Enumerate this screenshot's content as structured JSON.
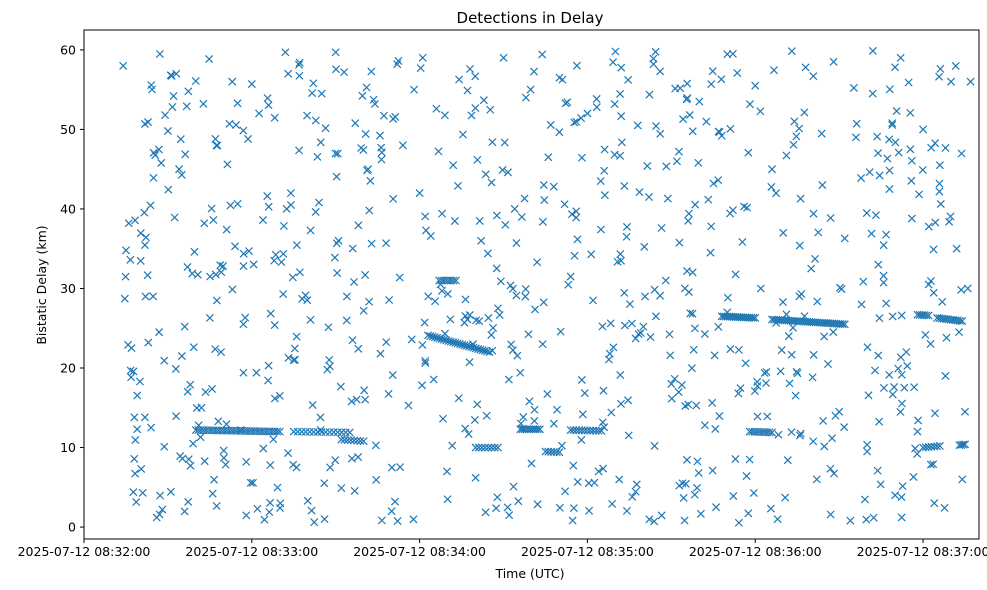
{
  "chart_data": {
    "type": "scatter",
    "title": "Detections in Delay",
    "xlabel": "Time (UTC)",
    "ylabel": "Bistatic Delay (km)",
    "marker": "x",
    "color": "#1f77b4",
    "grid": false,
    "xlim": [
      "2025-07-12 08:32:00",
      "2025-07-12 08:37:20"
    ],
    "ylim": [
      -1.5,
      62.5
    ],
    "x_ticks": [
      "2025-07-12 08:32:00",
      "2025-07-12 08:33:00",
      "2025-07-12 08:34:00",
      "2025-07-12 08:35:00",
      "2025-07-12 08:36:00",
      "2025-07-12 08:37:00"
    ],
    "y_ticks": [
      "0",
      "10",
      "20",
      "30",
      "40",
      "50",
      "60"
    ],
    "points": [
      [
        "08:32:14",
        58.0
      ],
      [
        "08:32:15",
        34.8
      ],
      [
        "08:32:16",
        38.2
      ],
      [
        "08:32:17",
        22.5
      ],
      [
        "08:32:18",
        13.8
      ],
      [
        "08:32:19",
        12.3
      ],
      [
        "08:32:20",
        18.3
      ],
      [
        "08:32:21",
        4.3
      ],
      [
        "08:32:22",
        29.0
      ],
      [
        "08:32:23",
        23.2
      ],
      [
        "08:32:24",
        12.5
      ],
      [
        "08:32:26",
        1.2
      ],
      [
        "08:32:27",
        1.6
      ],
      [
        "08:32:28",
        2.2
      ],
      [
        "08:32:29",
        51.8
      ],
      [
        "08:32:30",
        49.8
      ],
      [
        "08:32:31",
        56.8
      ],
      [
        "08:32:32",
        54.2
      ],
      [
        "08:32:33",
        57.0
      ],
      [
        "08:32:34",
        45.0
      ],
      [
        "08:32:35",
        21.5
      ],
      [
        "08:32:36",
        25.2
      ],
      [
        "08:32:37",
        32.7
      ],
      [
        "08:32:38",
        17.9
      ],
      [
        "08:32:39",
        10.5
      ],
      [
        "08:32:41",
        12.8
      ],
      [
        "08:32:42",
        15.0
      ],
      [
        "08:32:43",
        38.2
      ],
      [
        "08:32:45",
        26.3
      ],
      [
        "08:32:46",
        4.2
      ],
      [
        "08:32:47",
        48.8
      ],
      [
        "08:32:48",
        13.3
      ],
      [
        "08:32:49",
        22.0
      ],
      [
        "08:32:50",
        8.7
      ],
      [
        "08:32:51",
        37.4
      ],
      [
        "08:32:52",
        50.7
      ],
      [
        "08:32:53",
        56.0
      ],
      [
        "08:32:54",
        35.3
      ],
      [
        "08:32:56",
        12.2
      ],
      [
        "08:32:57",
        25.5
      ],
      [
        "08:32:58",
        8.2
      ],
      [
        "08:32:59",
        34.7
      ],
      [
        "08:33:00",
        55.7
      ],
      [
        "08:33:02",
        2.3
      ],
      [
        "08:33:04",
        38.6
      ],
      [
        "08:33:06",
        20.3
      ],
      [
        "08:33:08",
        33.5
      ],
      [
        "08:33:10",
        16.5
      ],
      [
        "08:33:12",
        59.7
      ],
      [
        "08:33:13",
        57.0
      ],
      [
        "08:33:14",
        40.5
      ],
      [
        "08:33:15",
        21.0
      ],
      [
        "08:33:16",
        7.5
      ],
      [
        "08:33:18",
        28.7
      ],
      [
        "08:33:20",
        3.3
      ],
      [
        "08:33:21",
        37.3
      ],
      [
        "08:33:22",
        55.8
      ],
      [
        "08:33:24",
        40.8
      ],
      [
        "08:33:25",
        54.5
      ],
      [
        "08:33:26",
        1.0
      ],
      [
        "08:33:27",
        19.8
      ],
      [
        "08:33:28",
        7.5
      ],
      [
        "08:33:30",
        59.7
      ],
      [
        "08:33:31",
        36.0
      ],
      [
        "08:33:32",
        4.9
      ],
      [
        "08:33:33",
        57.2
      ],
      [
        "08:33:34",
        29.0
      ],
      [
        "08:33:36",
        23.5
      ],
      [
        "08:33:38",
        8.8
      ],
      [
        "08:33:40",
        27.2
      ],
      [
        "08:33:42",
        39.8
      ],
      [
        "08:33:44",
        53.2
      ],
      [
        "08:33:46",
        21.8
      ],
      [
        "08:33:48",
        35.7
      ],
      [
        "08:33:50",
        2.0
      ],
      [
        "08:33:52",
        58.2
      ],
      [
        "08:33:54",
        48.0
      ],
      [
        "08:33:56",
        15.3
      ],
      [
        "08:33:58",
        55.0
      ],
      [
        "08:34:00",
        42.0
      ],
      [
        "08:34:02",
        20.9
      ],
      [
        "08:34:04",
        36.6
      ],
      [
        "08:34:06",
        52.6
      ],
      [
        "08:34:08",
        29.7
      ],
      [
        "08:34:10",
        3.5
      ],
      [
        "08:34:12",
        45.5
      ],
      [
        "08:34:14",
        16.2
      ],
      [
        "08:34:16",
        25.7
      ],
      [
        "08:34:18",
        57.6
      ],
      [
        "08:34:20",
        6.2
      ],
      [
        "08:34:22",
        36.0
      ],
      [
        "08:34:24",
        14.0
      ],
      [
        "08:34:26",
        48.4
      ],
      [
        "08:34:28",
        27.5
      ],
      [
        "08:34:30",
        59.0
      ],
      [
        "08:34:32",
        1.5
      ],
      [
        "08:34:34",
        40.0
      ],
      [
        "08:34:36",
        19.4
      ],
      [
        "08:34:38",
        54.0
      ],
      [
        "08:34:40",
        8.0
      ],
      [
        "08:34:42",
        33.3
      ],
      [
        "08:34:44",
        23.0
      ],
      [
        "08:34:46",
        46.5
      ],
      [
        "08:34:48",
        13.0
      ],
      [
        "08:34:50",
        56.5
      ],
      [
        "08:34:52",
        4.5
      ],
      [
        "08:34:54",
        31.5
      ],
      [
        "08:34:56",
        39.7
      ],
      [
        "08:34:58",
        18.5
      ],
      [
        "08:35:00",
        52.0
      ],
      [
        "08:35:02",
        28.5
      ],
      [
        "08:35:04",
        7.0
      ],
      [
        "08:35:06",
        44.8
      ],
      [
        "08:35:08",
        21.8
      ],
      [
        "08:35:10",
        59.8
      ],
      [
        "08:35:12",
        15.5
      ],
      [
        "08:35:14",
        36.5
      ],
      [
        "08:35:16",
        3.8
      ],
      [
        "08:35:18",
        50.5
      ],
      [
        "08:35:20",
        25.2
      ],
      [
        "08:35:22",
        41.5
      ],
      [
        "08:35:24",
        10.2
      ],
      [
        "08:35:26",
        57.3
      ],
      [
        "08:35:28",
        31.0
      ],
      [
        "08:35:30",
        18.0
      ],
      [
        "08:35:32",
        46.0
      ],
      [
        "08:35:34",
        5.5
      ],
      [
        "08:35:36",
        38.5
      ],
      [
        "08:35:38",
        22.3
      ],
      [
        "08:35:40",
        53.5
      ],
      [
        "08:35:42",
        12.8
      ],
      [
        "08:35:44",
        34.5
      ],
      [
        "08:35:46",
        2.5
      ],
      [
        "08:35:48",
        49.2
      ],
      [
        "08:35:50",
        27.0
      ],
      [
        "08:35:52",
        59.5
      ],
      [
        "08:35:54",
        16.8
      ],
      [
        "08:35:56",
        40.3
      ],
      [
        "08:35:58",
        8.5
      ],
      [
        "08:36:00",
        55.5
      ],
      [
        "08:36:02",
        30.0
      ],
      [
        "08:36:04",
        19.5
      ],
      [
        "08:36:06",
        45.0
      ],
      [
        "08:36:08",
        1.0
      ],
      [
        "08:36:10",
        37.0
      ],
      [
        "08:36:12",
        24.0
      ],
      [
        "08:36:14",
        51.0
      ],
      [
        "08:36:16",
        11.5
      ],
      [
        "08:36:18",
        57.8
      ],
      [
        "08:36:20",
        32.5
      ],
      [
        "08:36:22",
        6.0
      ],
      [
        "08:36:24",
        43.0
      ],
      [
        "08:36:26",
        20.5
      ],
      [
        "08:36:28",
        58.5
      ],
      [
        "08:36:30",
        14.5
      ],
      [
        "08:36:32",
        36.3
      ],
      [
        "08:36:34",
        0.8
      ],
      [
        "08:36:36",
        49.0
      ],
      [
        "08:36:38",
        28.0
      ],
      [
        "08:36:40",
        9.5
      ],
      [
        "08:36:42",
        54.5
      ],
      [
        "08:36:44",
        33.0
      ],
      [
        "08:36:46",
        17.5
      ],
      [
        "08:36:48",
        42.5
      ],
      [
        "08:36:50",
        4.0
      ],
      [
        "08:36:52",
        59.0
      ],
      [
        "08:36:54",
        22.0
      ],
      [
        "08:36:56",
        38.8
      ],
      [
        "08:36:58",
        12.0
      ],
      [
        "08:37:00",
        50.0
      ],
      [
        "08:37:02",
        30.5
      ],
      [
        "08:37:04",
        3.0
      ],
      [
        "08:37:06",
        45.5
      ],
      [
        "08:37:08",
        19.0
      ],
      [
        "08:37:10",
        56.0
      ],
      [
        "08:37:12",
        35.0
      ],
      [
        "08:37:14",
        6.0
      ],
      [
        "08:37:15",
        14.5
      ],
      [
        "08:37:16",
        30.0
      ],
      [
        "08:37:17",
        56.0
      ]
    ],
    "tracks": [
      {
        "start": "08:32:40",
        "end": "08:33:10",
        "y_start": 12.2,
        "y_end": 12.0,
        "count": 34
      },
      {
        "start": "08:33:15",
        "end": "08:33:35",
        "y_start": 12.0,
        "y_end": 11.9,
        "count": 15
      },
      {
        "start": "08:33:32",
        "end": "08:33:40",
        "y_start": 11.0,
        "y_end": 10.8,
        "count": 8
      },
      {
        "start": "08:34:03",
        "end": "08:34:25",
        "y_start": 24.1,
        "y_end": 22.0,
        "count": 28
      },
      {
        "start": "08:34:07",
        "end": "08:34:13",
        "y_start": 31.0,
        "y_end": 31.0,
        "count": 8
      },
      {
        "start": "08:34:20",
        "end": "08:34:28",
        "y_start": 10.0,
        "y_end": 10.0,
        "count": 8
      },
      {
        "start": "08:34:36",
        "end": "08:34:43",
        "y_start": 12.3,
        "y_end": 12.3,
        "count": 10
      },
      {
        "start": "08:34:45",
        "end": "08:34:50",
        "y_start": 9.5,
        "y_end": 9.4,
        "count": 6
      },
      {
        "start": "08:34:54",
        "end": "08:35:05",
        "y_start": 12.2,
        "y_end": 12.1,
        "count": 12
      },
      {
        "start": "08:35:48",
        "end": "08:36:00",
        "y_start": 26.5,
        "y_end": 26.3,
        "count": 18
      },
      {
        "start": "08:35:58",
        "end": "08:36:06",
        "y_start": 12.0,
        "y_end": 11.9,
        "count": 10
      },
      {
        "start": "08:36:06",
        "end": "08:36:32",
        "y_start": 26.1,
        "y_end": 25.5,
        "count": 36
      },
      {
        "start": "08:36:58",
        "end": "08:37:02",
        "y_start": 26.7,
        "y_end": 26.6,
        "count": 6
      },
      {
        "start": "08:37:00",
        "end": "08:37:06",
        "y_start": 10.0,
        "y_end": 10.2,
        "count": 7
      },
      {
        "start": "08:37:05",
        "end": "08:37:14",
        "y_start": 26.3,
        "y_end": 25.9,
        "count": 12
      },
      {
        "start": "08:37:13",
        "end": "08:37:15",
        "y_start": 10.3,
        "y_end": 10.4,
        "count": 4
      }
    ],
    "scatter_density": {
      "count": 640,
      "x_start": "08:32:14",
      "x_end": "08:37:15",
      "y_min": 0.5,
      "y_max": 60.0
    }
  }
}
